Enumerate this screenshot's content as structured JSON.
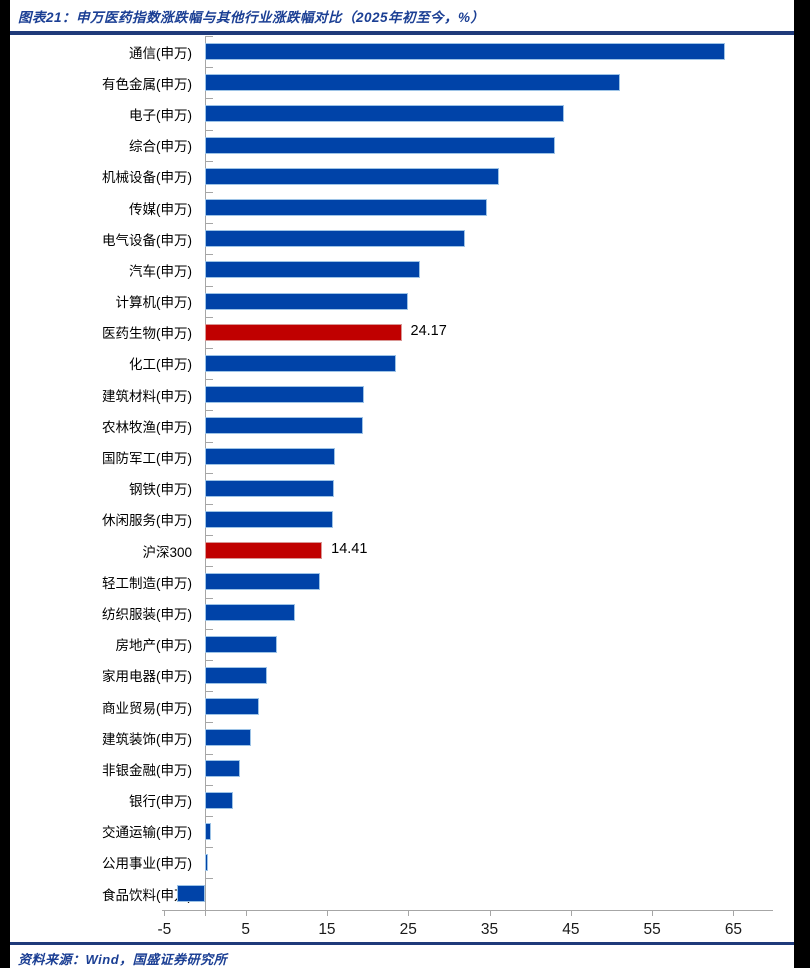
{
  "title": "图表21：申万医药指数涨跌幅与其他行业涨跌幅对比（2025年初至今，%）",
  "source": "资料来源：Wind，国盛证券研究所",
  "colors": {
    "accent_navy_text": "#1B3F94",
    "rule_navy": "#1F3A7A",
    "bar_blue": "#0043A8",
    "bar_blue_border": "#9DC3E6",
    "bar_red": "#C00000",
    "bar_red_border": "#D99694",
    "axis_gray": "#A6A6A6"
  },
  "chart_data": {
    "type": "bar",
    "orientation": "horizontal",
    "title": "申万医药指数涨跌幅与其他行业涨跌幅对比（2025年初至今，%）",
    "xlabel": "",
    "ylabel": "",
    "xlim": [
      -5.5,
      70
    ],
    "x_ticks": [
      -5,
      5,
      15,
      25,
      35,
      45,
      55,
      65
    ],
    "grid": false,
    "legend": "none",
    "categories": [
      "通信(申万)",
      "有色金属(申万)",
      "电子(申万)",
      "综合(申万)",
      "机械设备(申万)",
      "传媒(申万)",
      "电气设备(申万)",
      "汽车(申万)",
      "计算机(申万)",
      "医药生物(申万)",
      "化工(申万)",
      "建筑材料(申万)",
      "农林牧渔(申万)",
      "国防军工(申万)",
      "钢铁(申万)",
      "休闲服务(申万)",
      "沪深300",
      "轻工制造(申万)",
      "纺织服装(申万)",
      "房地产(申万)",
      "家用电器(申万)",
      "商业贸易(申万)",
      "建筑装饰(申万)",
      "非银金融(申万)",
      "银行(申万)",
      "交通运输(申万)",
      "公用事业(申万)",
      "食品饮料(申万)"
    ],
    "values": [
      64.0,
      51.0,
      44.2,
      43.0,
      36.2,
      34.7,
      32.0,
      26.4,
      25.0,
      24.17,
      23.5,
      19.6,
      19.4,
      16.0,
      15.9,
      15.8,
      14.41,
      14.1,
      11.1,
      8.8,
      7.6,
      6.6,
      5.7,
      4.3,
      3.4,
      0.7,
      0.4,
      -3.4
    ],
    "highlight_indices": [
      9,
      16
    ],
    "annotations": [
      {
        "index": 9,
        "text": "24.17"
      },
      {
        "index": 16,
        "text": "14.41"
      }
    ]
  }
}
